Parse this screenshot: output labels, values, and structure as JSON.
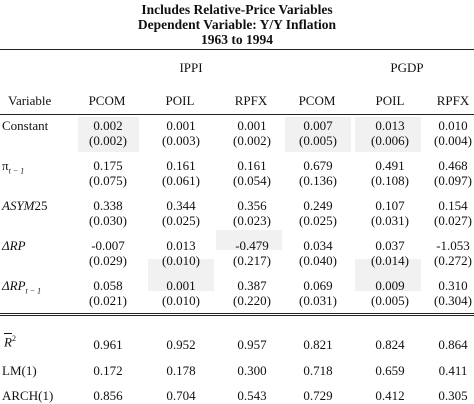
{
  "title": {
    "line1": "Includes Relative-Price Variables",
    "line2": "Dependent Variable: Y/Y Inflation",
    "line3": "1963 to 1994"
  },
  "groups": [
    "IPPI",
    "PGDP"
  ],
  "header": {
    "variable": "Variable",
    "cols": [
      "PCOM",
      "POIL",
      "RPFX",
      "PCOM",
      "POIL",
      "RPFX"
    ]
  },
  "rows": [
    {
      "label": "Constant",
      "coef": [
        "0.002",
        "0.001",
        "0.001",
        "0.007",
        "0.013",
        "0.010"
      ],
      "se": [
        "(0.002)",
        "(0.003)",
        "(0.002)",
        "(0.005)",
        "(0.006)",
        "(0.004)"
      ]
    },
    {
      "label_main": "π",
      "label_sub": "t − 1",
      "coef": [
        "0.175",
        "0.161",
        "0.161",
        "0.679",
        "0.491",
        "0.468"
      ],
      "se": [
        "(0.075)",
        "(0.061)",
        "(0.054)",
        "(0.136)",
        "(0.108)",
        "(0.097)"
      ]
    },
    {
      "label_main": "ASYM",
      "label_tail": "25",
      "coef": [
        "0.338",
        "0.344",
        "0.356",
        "0.249",
        "0.107",
        "0.154"
      ],
      "se": [
        "(0.030)",
        "(0.025)",
        "(0.023)",
        "(0.025)",
        "(0.031)",
        "(0.027)"
      ]
    },
    {
      "label_main": "ΔRP",
      "coef": [
        "-0.007",
        "0.013",
        "-0.479",
        "0.034",
        "0.037",
        "-1.053"
      ],
      "se": [
        "(0.029)",
        "(0.010)",
        "(0.217)",
        "(0.040)",
        "(0.014)",
        "(0.272)"
      ]
    },
    {
      "label_main": "ΔRP",
      "label_sub": "t − 1",
      "coef": [
        "0.058",
        "0.001",
        "0.387",
        "0.069",
        "0.009",
        "0.310"
      ],
      "se": [
        "(0.021)",
        "(0.010)",
        "(0.220)",
        "(0.031)",
        "(0.005)",
        "(0.304)"
      ]
    }
  ],
  "stats": [
    {
      "label_main": "R",
      "label_sup": "2",
      "values": [
        "0.961",
        "0.952",
        "0.957",
        "0.821",
        "0.824",
        "0.864"
      ]
    },
    {
      "label": "LM(1)",
      "values": [
        "0.172",
        "0.178",
        "0.300",
        "0.718",
        "0.659",
        "0.411"
      ]
    },
    {
      "label": "ARCH(1)",
      "values": [
        "0.856",
        "0.704",
        "0.543",
        "0.729",
        "0.412",
        "0.305"
      ]
    }
  ]
}
